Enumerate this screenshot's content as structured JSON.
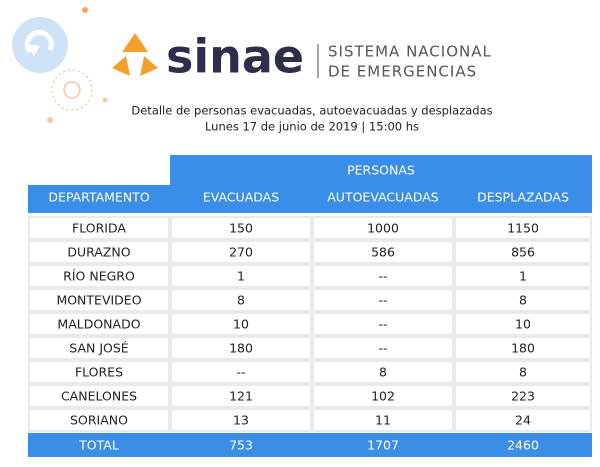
{
  "header": {
    "logo_text": "sinae",
    "org_line1": "SISTEMA NACIONAL",
    "org_line2": "DE EMERGENCIAS"
  },
  "subtitle": {
    "line1": "Detalle de personas evacuadas, autoevacuadas y desplazadas",
    "line2": "Lunes 17 de junio de 2019 | 15:00 hs"
  },
  "table": {
    "group_header": "PERSONAS",
    "columns": [
      "DEPARTAMENTO",
      "EVACUADAS",
      "AUTOEVACUADAS",
      "DESPLAZADAS"
    ],
    "rows": [
      [
        "FLORIDA",
        150,
        1000,
        1150
      ],
      [
        "DURAZNO",
        270,
        586,
        856
      ],
      [
        "RÍO NEGRO",
        1,
        "--",
        1
      ],
      [
        "MONTEVIDEO",
        8,
        "--",
        8
      ],
      [
        "MALDONADO",
        10,
        "--",
        10
      ],
      [
        "SAN JOSÉ",
        180,
        "--",
        180
      ],
      [
        "FLORES",
        "--",
        8,
        8
      ],
      [
        "CANELONES",
        121,
        102,
        223
      ],
      [
        "SORIANO",
        13,
        11,
        24
      ]
    ],
    "total": [
      "TOTAL",
      753,
      1707,
      2460
    ]
  }
}
